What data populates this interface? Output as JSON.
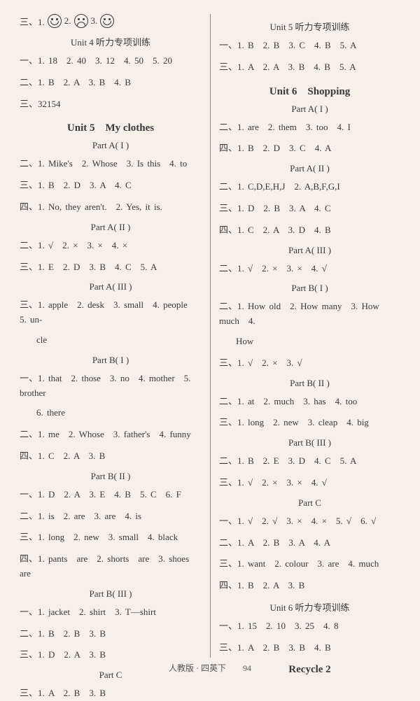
{
  "left": {
    "emoji_prefix": "三、1.",
    "emoji_mid1": "2.",
    "emoji_mid2": "3.",
    "u4_listen": "Unit 4 听力专项训练",
    "u4_l1": "一、1. 18　2. 40　3. 12　4. 50　5. 20",
    "u4_l2": "二、1. B　2. A　3. B　4. B",
    "u4_l3": "三、32154",
    "u5_title": "Unit 5　My clothes",
    "u5_pa1": "Part A( I )",
    "u5_pa1_l1": "二、1. Mike's　2. Whose　3. Is this　4. to",
    "u5_pa1_l2": "三、1. B　2. D　3. A　4. C",
    "u5_pa1_l3": "四、1. No, they aren't.　2. Yes, it is.",
    "u5_pa2": "Part A( II )",
    "u5_pa2_l1": "二、1. √　2. ×　3. ×　4. ×",
    "u5_pa2_l2": "三、1. E　2. D　3. B　4. C　5. A",
    "u5_pa3": "Part A( III )",
    "u5_pa3_l1": "三、1. apple　2. desk　3. small　4. people　5. un-",
    "u5_pa3_l1b": "cle",
    "u5_pb1": "Part B( I )",
    "u5_pb1_l1": "一、1. that　2. those　3. no　4. mother　5. brother",
    "u5_pb1_l1b": "6. there",
    "u5_pb1_l2": "二、1. me　2. Whose　3. father's　4. funny",
    "u5_pb1_l3": "四、1. C　2. A　3. B",
    "u5_pb2": "Part B( II )",
    "u5_pb2_l1": "一、1. D　2. A　3. E　4. B　5. C　6. F",
    "u5_pb2_l2": "二、1. is　2. are　3. are　4. is",
    "u5_pb2_l3": "三、1. long　2. new　3. small　4. black",
    "u5_pb2_l4": "四、1. pants　are　2. shorts　are　3. shoes　are",
    "u5_pb3": "Part B( III )",
    "u5_pb3_l1": "一、1. jacket　2. shirt　3. T—shirt",
    "u5_pb3_l2": "二、1. B　2. B　3. B",
    "u5_pb3_l3": "三、1. D　2. A　3. B",
    "u5_pc": "Part C",
    "u5_pc_l1": "三、1. A　2. B　3. B"
  },
  "right": {
    "u5_listen": "Unit 5 听力专项训练",
    "u5l_l1": "一、1. B　2. B　3. C　4. B　5. A",
    "u5l_l2": "三、1. A　2. A　3. B　4. B　5. A",
    "u6_title": "Unit 6　Shopping",
    "u6_pa1": "Part A( I )",
    "u6_pa1_l1": "二、1. are　2. them　3. too　4. I",
    "u6_pa1_l2": "四、1. B　2. D　3. C　4. A",
    "u6_pa2": "Part A( II )",
    "u6_pa2_l1": "二、1. C,D,E,H,J　2. A,B,F,G,I",
    "u6_pa2_l2": "三、1. D　2. B　3. A　4. C",
    "u6_pa2_l3": "四、1. C　2. A　3. D　4. B",
    "u6_pa3": "Part A( III )",
    "u6_pa3_l1": "二、1. √　2. ×　3. ×　4. √",
    "u6_pb1": "Part B( I )",
    "u6_pb1_l1": "二、1. How old　2. How many　3. How much　4.",
    "u6_pb1_l1b": "How",
    "u6_pb1_l2": "三、1. √　2. ×　3. √",
    "u6_pb2": "Part B( II )",
    "u6_pb2_l1": "二、1. at　2. much　3. has　4. too",
    "u6_pb2_l2": "三、1. long　2. new　3. cleap　4. big",
    "u6_pb3": "Part B( III )",
    "u6_pb3_l1": "二、1. B　2. E　3. D　4. C　5. A",
    "u6_pb3_l2": "三、1. √　2. ×　3. ×　4. √",
    "u6_pc": "Part C",
    "u6_pc_l1": "一、1. √　2. √　3. ×　4. ×　5. √　6. √",
    "u6_pc_l2": "二、1. A　2. B　3. A　4. A",
    "u6_pc_l3": "三、1. want　2. colour　3. are　4. much",
    "u6_pc_l4": "四、1. B　2. A　3. B",
    "u6_listen": "Unit 6 听力专项训练",
    "u6l_l1": "一、1. 15　2. 10　3. 25　4. 8",
    "u6l_l2": "三、1. A　2. B　3. B　4. B",
    "recycle": "Recycle 2"
  },
  "footer": "人教版 · 四英下　　94"
}
